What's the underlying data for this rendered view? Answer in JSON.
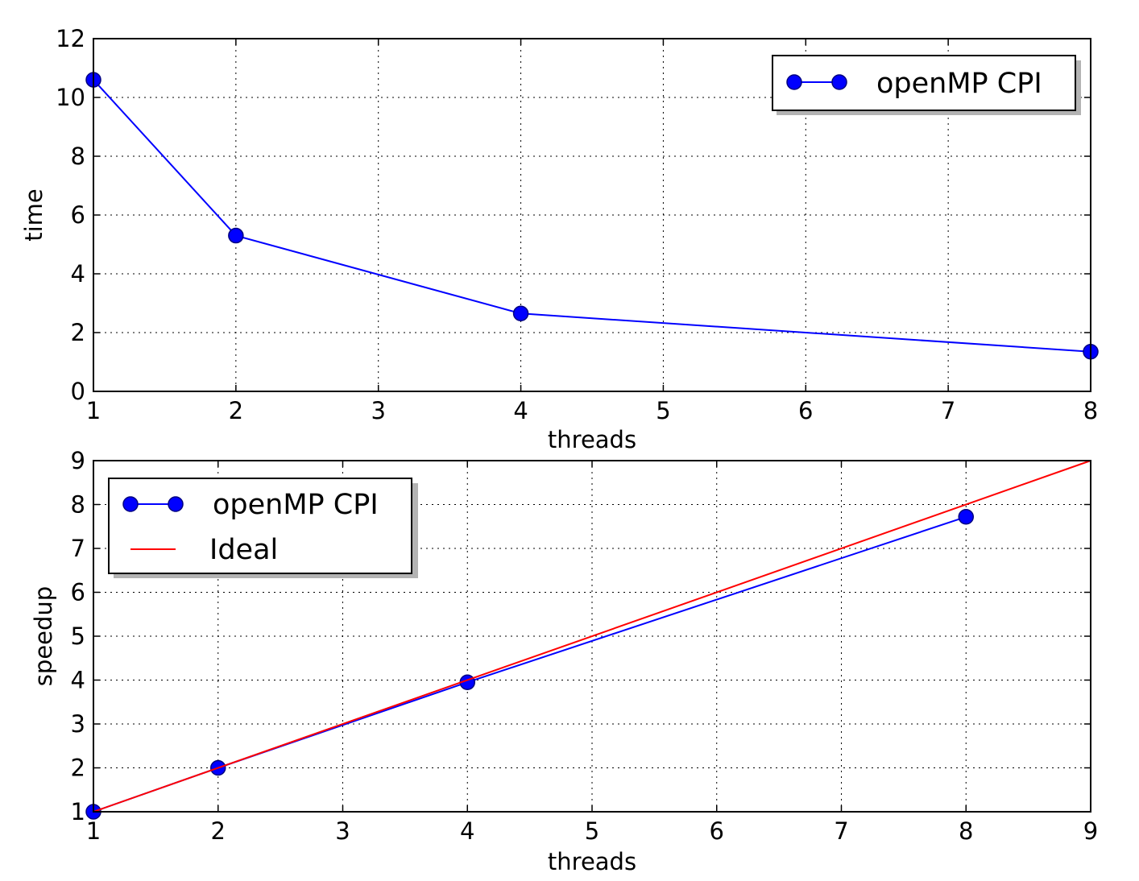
{
  "chart_data": [
    {
      "type": "line",
      "xlabel": "threads",
      "ylabel": "time",
      "xlim": [
        1,
        8
      ],
      "ylim": [
        0,
        12
      ],
      "xticks": [
        1,
        2,
        3,
        4,
        5,
        6,
        7,
        8
      ],
      "yticks": [
        0,
        2,
        4,
        6,
        8,
        10,
        12
      ],
      "grid": true,
      "legend": "top-right",
      "series": [
        {
          "name": "openMP CPI",
          "color": "#0000ff",
          "marker": "circle",
          "x": [
            1,
            2,
            4,
            8
          ],
          "y": [
            10.6,
            5.3,
            2.65,
            1.35
          ]
        }
      ]
    },
    {
      "type": "line",
      "xlabel": "threads",
      "ylabel": "speedup",
      "xlim": [
        1,
        9
      ],
      "ylim": [
        1,
        9
      ],
      "xticks": [
        1,
        2,
        3,
        4,
        5,
        6,
        7,
        8,
        9
      ],
      "yticks": [
        1,
        2,
        3,
        4,
        5,
        6,
        7,
        8,
        9
      ],
      "grid": true,
      "legend": "top-left",
      "series": [
        {
          "name": "openMP CPI",
          "color": "#0000ff",
          "marker": "circle",
          "x": [
            1,
            2,
            4,
            8
          ],
          "y": [
            1.0,
            2.0,
            3.95,
            7.72
          ]
        },
        {
          "name": "Ideal",
          "color": "#ff0000",
          "marker": "none",
          "x": [
            1,
            9
          ],
          "y": [
            1,
            9
          ]
        }
      ]
    }
  ]
}
